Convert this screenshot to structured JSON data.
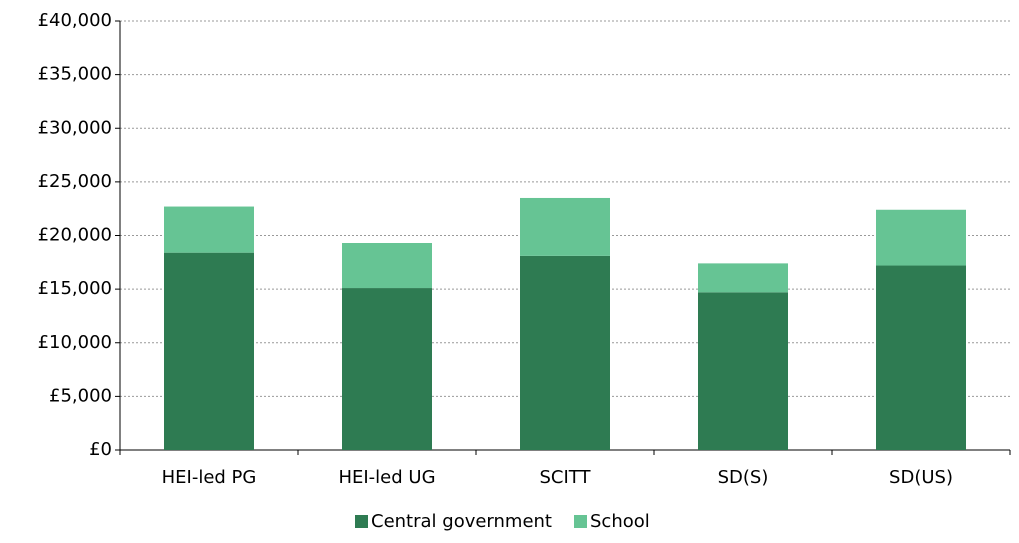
{
  "chart_data": {
    "type": "stacked_bar",
    "categories": [
      "HEI-led PG",
      "HEI-led UG",
      "SCITT",
      "SD(S)",
      "SD(US)"
    ],
    "series": [
      {
        "name": "Central government",
        "color": "#2e7b52",
        "values": [
          18400,
          15100,
          18100,
          14700,
          17200
        ]
      },
      {
        "name": "School",
        "color": "#66c494",
        "values": [
          4300,
          4200,
          5400,
          2700,
          5200
        ]
      }
    ],
    "ylim": [
      0,
      40000
    ],
    "yticks": [
      {
        "value": 0,
        "label": "£0"
      },
      {
        "value": 5000,
        "label": "£5,000"
      },
      {
        "value": 10000,
        "label": "£10,000"
      },
      {
        "value": 15000,
        "label": "£15,000"
      },
      {
        "value": 20000,
        "label": "£20,000"
      },
      {
        "value": 25000,
        "label": "£25,000"
      },
      {
        "value": 30000,
        "label": "£30,000"
      },
      {
        "value": 35000,
        "label": "£35,000"
      },
      {
        "value": 40000,
        "label": "£40,000"
      }
    ],
    "grid": true,
    "legend": "bottom"
  }
}
